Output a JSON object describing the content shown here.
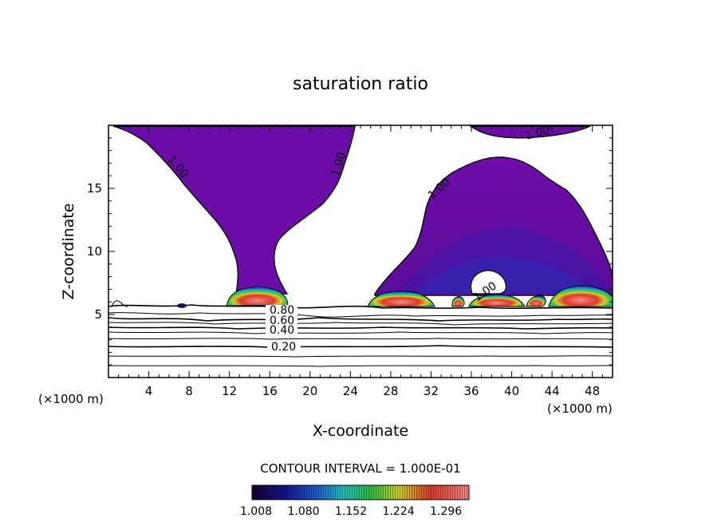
{
  "chart_data": {
    "type": "contour",
    "title": "saturation ratio",
    "xlabel": "X-coordinate",
    "ylabel": "Z-coordinate",
    "x_unit": "(×1000 m)",
    "z_unit": "(×1000 m)",
    "xlim": [
      0,
      50
    ],
    "ylim": [
      0,
      20
    ],
    "x_ticks": [
      4,
      8,
      12,
      16,
      20,
      24,
      28,
      32,
      36,
      40,
      44,
      48
    ],
    "y_ticks": [
      5,
      10,
      15
    ],
    "contour_interval_text": "CONTOUR INTERVAL = 1.000E-01",
    "contour_labels": [
      "1.00",
      "1.00",
      "1.00",
      "1.00",
      "1.00",
      "0.80",
      "0.60",
      "0.40",
      "0.20"
    ],
    "colorbar": {
      "ticks": [
        "1.008",
        "1.080",
        "1.152",
        "1.224",
        "1.296"
      ],
      "colors": [
        "#2a0a4a",
        "#141490",
        "#1f5fd0",
        "#20c0c0",
        "#30c040",
        "#d0d030",
        "#e03a2a",
        "#f28a86"
      ]
    },
    "supersaturated_regions": [
      {
        "name": "left plume",
        "x_range": [
          0.5,
          24.5
        ],
        "z_range": [
          5.6,
          20
        ],
        "core_x": [
          12,
          19
        ]
      },
      {
        "name": "right cloud",
        "x_range": [
          26,
          50
        ],
        "z_range": [
          5.6,
          17.5
        ],
        "core_x": [
          26,
          50
        ]
      },
      {
        "name": "top-right cap",
        "x_range": [
          38,
          48
        ],
        "z_range": [
          18.8,
          20
        ]
      }
    ],
    "isolines_below_cloud": [
      0.2,
      0.4,
      0.6,
      0.8
    ]
  }
}
